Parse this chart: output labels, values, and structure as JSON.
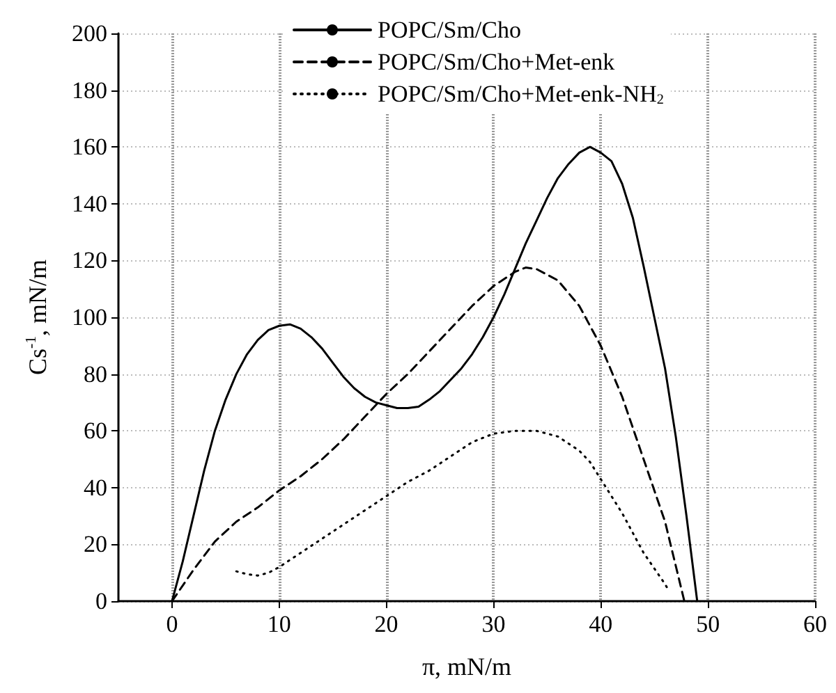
{
  "chart_data": {
    "type": "line",
    "xlabel": "π, mN/m",
    "ylabel": "Cs$^{-1}$, mN/m",
    "xlim": [
      -5,
      60
    ],
    "xticks": [
      0,
      10,
      20,
      30,
      40,
      50,
      60
    ],
    "ylim": [
      0,
      200
    ],
    "yticks": [
      0,
      20,
      40,
      60,
      80,
      100,
      120,
      140,
      160,
      180,
      200
    ],
    "grid": true,
    "legend": "top",
    "marker": "none",
    "series": [
      {
        "name": "POPC/Sm/Cho",
        "color": "#000000",
        "line_style": "solid",
        "x": [
          0,
          1,
          2,
          3,
          4,
          5,
          6,
          7,
          8,
          9,
          10,
          11,
          12,
          13,
          14,
          15,
          16,
          17,
          18,
          19,
          20,
          21,
          22,
          23,
          24,
          25,
          26,
          27,
          28,
          29,
          30,
          31,
          32,
          33,
          34,
          35,
          36,
          37,
          38,
          39,
          40,
          41,
          42,
          43,
          44,
          45,
          46,
          47,
          48,
          49
        ],
        "values": [
          0,
          14,
          30,
          46,
          60,
          71,
          80,
          87,
          92,
          95.5,
          97,
          97.5,
          96,
          93,
          89,
          84,
          79,
          75,
          72,
          70,
          69,
          68,
          68,
          68.5,
          71,
          74,
          78,
          82,
          87,
          93,
          100,
          108,
          117,
          126,
          134,
          142,
          149,
          154,
          158,
          160,
          158,
          155,
          147,
          135,
          118,
          100,
          82,
          58,
          30,
          0
        ]
      },
      {
        "name": "POPC/Sm/Cho+Met-enk",
        "color": "#000000",
        "line_style": "dashed",
        "x": [
          0,
          2,
          4,
          6,
          8,
          10,
          12,
          14,
          16,
          18,
          20,
          22,
          24,
          26,
          28,
          30,
          32,
          33,
          34,
          36,
          38,
          40,
          42,
          44,
          46,
          47.8
        ],
        "values": [
          0,
          11,
          21,
          28,
          33,
          39,
          44,
          50,
          57,
          65,
          73,
          80,
          88,
          96,
          104,
          111,
          116,
          117.5,
          117,
          113,
          104,
          90,
          72,
          50,
          28,
          0
        ]
      },
      {
        "name": "POPC/Sm/Cho+Met-enk-NH$_{2}$",
        "color": "#000000",
        "line_style": "dotted",
        "x": [
          6,
          7,
          8,
          9,
          10,
          12,
          14,
          16,
          18,
          20,
          22,
          24,
          26,
          28,
          30,
          32,
          33,
          34,
          36,
          38,
          39,
          40,
          42,
          44,
          46,
          46.3
        ],
        "values": [
          10.5,
          9.5,
          9,
          10,
          12,
          17,
          22,
          27,
          32,
          37,
          42,
          46,
          51,
          56,
          59,
          60,
          60,
          60,
          58,
          53,
          49,
          43,
          31,
          17,
          6,
          4
        ]
      }
    ]
  }
}
